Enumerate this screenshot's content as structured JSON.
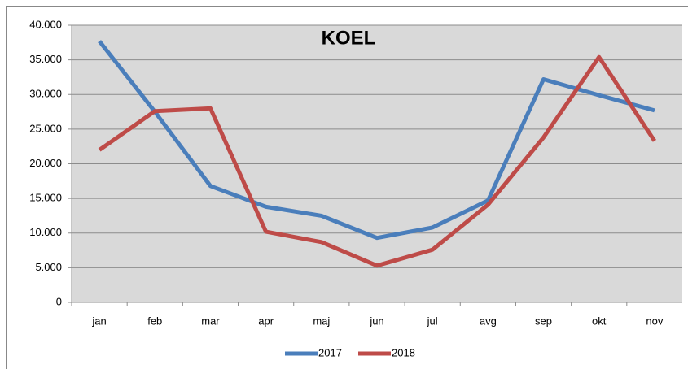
{
  "chart_data": {
    "type": "line",
    "title": "KOEL",
    "categories": [
      "jan",
      "feb",
      "mar",
      "apr",
      "maj",
      "jun",
      "jul",
      "avg",
      "sep",
      "okt",
      "nov"
    ],
    "series": [
      {
        "name": "2017",
        "color": "#4a7ebb",
        "values": [
          37700,
          27500,
          16800,
          13800,
          12500,
          9300,
          10800,
          14700,
          32200,
          29900,
          27700
        ]
      },
      {
        "name": "2018",
        "color": "#be4b48",
        "values": [
          22000,
          27600,
          28000,
          10200,
          8700,
          5300,
          7600,
          14100,
          23800,
          35400,
          23300
        ]
      }
    ],
    "ylim": [
      0,
      40000
    ],
    "yticks": [
      0,
      {
        "value": 5000,
        "label": "5.000"
      },
      {
        "value": 10000,
        "label": "10.000"
      },
      {
        "value": 15000,
        "label": "15.000"
      },
      {
        "value": 20000,
        "label": "20.000"
      },
      {
        "value": 25000,
        "label": "25.000"
      },
      {
        "value": 30000,
        "label": "30.000"
      },
      {
        "value": 35000,
        "label": "35.000"
      },
      {
        "value": 40000,
        "label": "40.000"
      }
    ],
    "grid": true,
    "legend": "bottom"
  }
}
